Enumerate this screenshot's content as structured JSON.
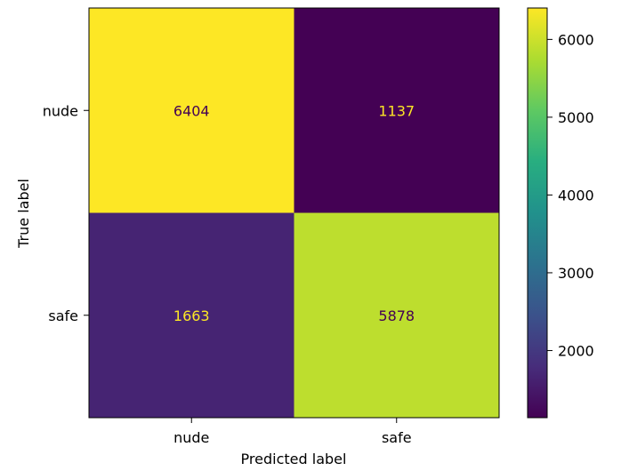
{
  "chart_data": {
    "type": "heatmap",
    "title": "",
    "xlabel": "Predicted label",
    "ylabel": "True label",
    "x_categories": [
      "nude",
      "safe"
    ],
    "y_categories": [
      "nude",
      "safe"
    ],
    "values": [
      [
        6404,
        1137
      ],
      [
        1663,
        5878
      ]
    ],
    "value_labels": [
      [
        "6404",
        "1137"
      ],
      [
        "1663",
        "5878"
      ]
    ],
    "colormap": "viridis",
    "colorbar": {
      "range": [
        1137,
        6404
      ],
      "ticks": [
        2000,
        3000,
        4000,
        5000,
        6000
      ],
      "tick_labels": [
        "2000",
        "3000",
        "4000",
        "5000",
        "6000"
      ]
    },
    "grid": false,
    "colors": {
      "dark_text": "#440154",
      "light_text": "#fde725"
    }
  }
}
